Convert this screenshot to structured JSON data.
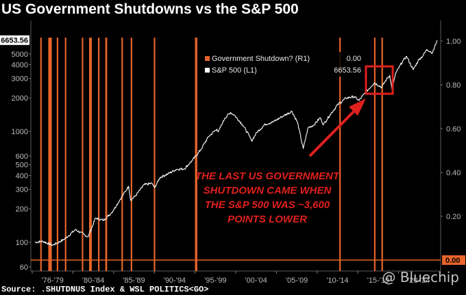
{
  "title": "US Government Shutdowns vs the S&P 500",
  "source": "Source: .SHUTDNUS Index & WSL POLITICS<GO>",
  "watermark": "@ Bluechip",
  "colors": {
    "background": "#000000",
    "shutdown": "#e8642a",
    "sp500": "#ffffff",
    "annotation": "#e0201c",
    "axis_text": "#bcbcbc"
  },
  "chart_data": {
    "type": "line",
    "title": "US Government Shutdowns vs the S&P 500",
    "left_axis": {
      "scale": "log",
      "ylim": [
        55,
        8200
      ],
      "ticks": [
        60,
        100,
        200,
        300,
        400,
        500,
        600,
        1000,
        2000,
        3000,
        4000,
        5000
      ],
      "current_label": "6653.56"
    },
    "right_axis": {
      "ylim": [
        -0.05,
        1.05
      ],
      "ticks": [
        "0.20",
        "0.40",
        "0.60",
        "0.80",
        "1.00"
      ],
      "current_label": "0.00"
    },
    "x_ticks": [
      "'76-'79",
      "'80-'84",
      "'85-'89",
      "'90-'94",
      "'95-'99",
      "'00-'04",
      "'05-'09",
      "'10-'14",
      "'15-'19",
      "'20-'24"
    ],
    "xlim": [
      1975.5,
      2026.2
    ],
    "legend": [
      {
        "label": "Government Shutdown?  (R1)",
        "value": "0.00",
        "color": "#e8642a"
      },
      {
        "label": "S&P 500  (L1)",
        "value": "6653.56",
        "color": "#ffffff"
      }
    ],
    "series": [
      {
        "name": "S&P 500",
        "axis": "left",
        "x": [
          1976.0,
          1977.0,
          1978.2,
          1979.5,
          1980.2,
          1981.0,
          1982.6,
          1983.5,
          1984.5,
          1985.5,
          1986.5,
          1987.6,
          1987.85,
          1988.5,
          1989.5,
          1990.5,
          1990.8,
          1991.5,
          1992.5,
          1993.5,
          1994.5,
          1995.5,
          1996.5,
          1997.5,
          1998.5,
          1998.7,
          1999.5,
          2000.2,
          2000.7,
          2001.7,
          2002.5,
          2002.8,
          2003.5,
          2004.5,
          2005.5,
          2006.5,
          2007.8,
          2008.5,
          2009.2,
          2009.8,
          2010.5,
          2011.3,
          2011.7,
          2012.5,
          2013.5,
          2014.5,
          2015.5,
          2016.1,
          2016.8,
          2018.0,
          2018.9,
          2019.5,
          2019.9,
          2020.2,
          2020.6,
          2021.5,
          2022.0,
          2022.8,
          2023.5,
          2024.0,
          2024.5,
          2025.2,
          2025.75
        ],
        "values": [
          100,
          102,
          94,
          105,
          115,
          130,
          112,
          165,
          158,
          185,
          240,
          320,
          240,
          265,
          330,
          340,
          310,
          385,
          415,
          455,
          460,
          550,
          680,
          900,
          1050,
          990,
          1320,
          1480,
          1400,
          1150,
          920,
          820,
          990,
          1160,
          1220,
          1350,
          1520,
          1200,
          700,
          1080,
          1140,
          1330,
          1150,
          1410,
          1750,
          2000,
          2060,
          1900,
          2200,
          2750,
          2500,
          2950,
          3200,
          2350,
          3300,
          4300,
          4750,
          3600,
          4450,
          4800,
          5500,
          5100,
          6653.56
        ]
      },
      {
        "name": "Government Shutdown?",
        "axis": "right",
        "shutdowns": [
          1976.75,
          1977.75,
          1977.85,
          1978.0,
          1978.8,
          1979.8,
          1981.9,
          1982.8,
          1982.95,
          1983.9,
          1984.8,
          1984.85,
          1986.8,
          1987.95,
          1990.8,
          1995.9,
          1996.0,
          2013.75,
          2018.05,
          2018.97
        ]
      }
    ],
    "annotations": [
      {
        "text": [
          "THE LAST US GOVERNMENT",
          "SHUTDOWN CAME WHEN",
          "THE S&P 500 WAS ~3,600",
          "POINTS LOWER"
        ]
      }
    ]
  }
}
